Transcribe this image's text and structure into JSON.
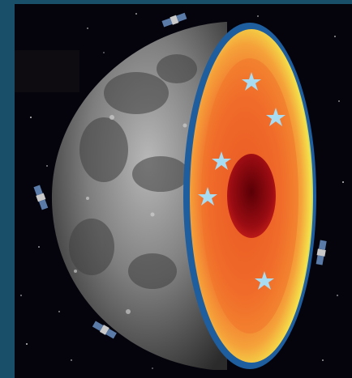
{
  "image": {
    "subject": "moon-cutaway-with-interior-and-orbiting-satellites",
    "colors": {
      "frame": "#1a4f6a",
      "space": "#05040c",
      "moon_surface": "#8a8a8a",
      "outer_shell": "#2a6fb0",
      "cyan_layer": "#3fc7d6",
      "yellow_layer": "#f4e04a",
      "mantle_orange": "#f07a2a",
      "inner_red": "#e0381e",
      "core": "#8a0a10",
      "star_marker": "#a8dcf2"
    },
    "icons": [
      "star-icon",
      "satellite-icon"
    ]
  }
}
